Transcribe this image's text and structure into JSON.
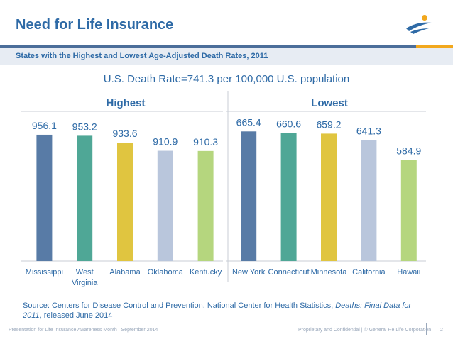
{
  "header": {
    "title": "Need for Life Insurance",
    "band_text": "States with the Highest and Lowest Age-Adjusted Death Rates, 2011",
    "logo_icon": "life-happens-logo-icon"
  },
  "subtitle": "U.S. Death Rate=741.3 per 100,000 U.S. population",
  "chart_data": [
    {
      "type": "bar",
      "title": "Highest",
      "categories": [
        "Mississippi",
        "West Virginia",
        "Alabama",
        "Oklahoma",
        "Kentucky"
      ],
      "category_lines": [
        [
          "Mississippi"
        ],
        [
          "West",
          "Virginia"
        ],
        [
          "Alabama"
        ],
        [
          "Oklahoma"
        ],
        [
          "Kentucky"
        ]
      ],
      "values": [
        956.1,
        953.2,
        933.6,
        910.9,
        910.3
      ],
      "value_labels": [
        "956.1",
        "953.2",
        "933.6",
        "910.9",
        "910.3"
      ],
      "colors": [
        "#587ba6",
        "#4fa796",
        "#e0c540",
        "#b9c6dc",
        "#b5d67e"
      ],
      "ylim": [
        600,
        1000
      ],
      "grid": false,
      "legend": "none"
    },
    {
      "type": "bar",
      "title": "Lowest",
      "categories": [
        "New York",
        "Connecticut",
        "Minnesota",
        "California",
        "Hawaii"
      ],
      "category_lines": [
        [
          "New York"
        ],
        [
          "Connecticut"
        ],
        [
          "Minnesota"
        ],
        [
          "California"
        ],
        [
          "Hawaii"
        ]
      ],
      "values": [
        665.4,
        660.6,
        659.2,
        641.3,
        584.9
      ],
      "value_labels": [
        "665.4",
        "660.6",
        "659.2",
        "641.3",
        "584.9"
      ],
      "colors": [
        "#587ba6",
        "#4fa796",
        "#e0c540",
        "#b9c6dc",
        "#b5d67e"
      ],
      "ylim": [
        300,
        700
      ],
      "grid": false,
      "legend": "none"
    }
  ],
  "source": {
    "prefix": "Source: Centers for Disease Control and Prevention, National Center for Health Statistics, ",
    "italic": "Deaths: Final Data for 2011",
    "suffix": ", released June 2014"
  },
  "footer": {
    "left": "Presentation for Life Insurance Awareness Month | September 2014",
    "right": "Proprietary and Confidential   |   © General Re Life Corporation",
    "page": "2"
  }
}
